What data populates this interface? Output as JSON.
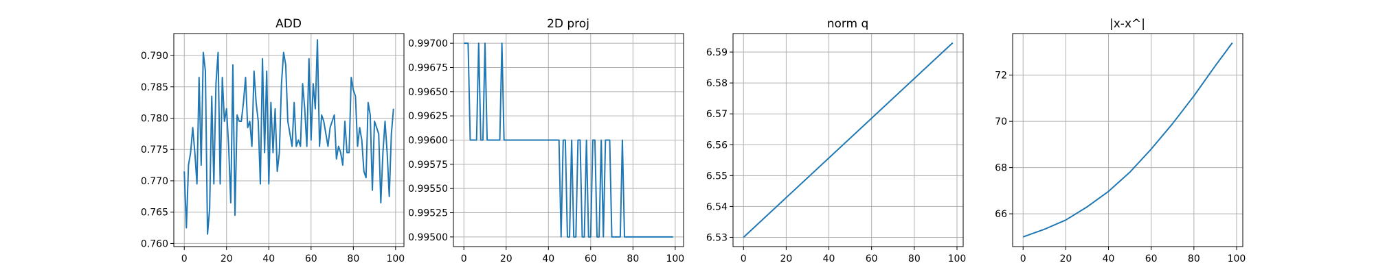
{
  "figure": {
    "background": "#ffffff"
  },
  "chart_data": [
    {
      "type": "line",
      "title": "ADD",
      "xlabel": "",
      "ylabel": "",
      "grid": true,
      "line_color": "#1f77b4",
      "xlim": [
        -4.95,
        103.95
      ],
      "ylim": [
        0.7595,
        0.7935
      ],
      "xticks": [
        0,
        20,
        40,
        60,
        80,
        100
      ],
      "xtick_labels": [
        "0",
        "20",
        "40",
        "60",
        "80",
        "100"
      ],
      "yticks": [
        0.76,
        0.765,
        0.77,
        0.775,
        0.78,
        0.785,
        0.79
      ],
      "ytick_labels": [
        "0.760",
        "0.765",
        "0.770",
        "0.775",
        "0.780",
        "0.785",
        "0.790"
      ],
      "series": [
        {
          "x": [
            0,
            1,
            2,
            3,
            4,
            5,
            6,
            7,
            8,
            9,
            10,
            11,
            12,
            13,
            14,
            15,
            16,
            17,
            18,
            19,
            20,
            21,
            22,
            23,
            24,
            25,
            26,
            27,
            28,
            29,
            30,
            31,
            32,
            33,
            34,
            35,
            36,
            37,
            38,
            39,
            40,
            41,
            42,
            43,
            44,
            45,
            46,
            47,
            48,
            49,
            50,
            51,
            52,
            53,
            54,
            55,
            56,
            57,
            58,
            59,
            60,
            61,
            62,
            63,
            64,
            65,
            66,
            67,
            68,
            69,
            70,
            71,
            72,
            73,
            74,
            75,
            76,
            77,
            78,
            79,
            80,
            81,
            82,
            83,
            84,
            85,
            86,
            87,
            88,
            89,
            90,
            91,
            92,
            93,
            94,
            95,
            96,
            97,
            98,
            99
          ],
          "y": [
            0.7715,
            0.7625,
            0.7725,
            0.7745,
            0.7785,
            0.7745,
            0.7695,
            0.7865,
            0.7725,
            0.7905,
            0.7875,
            0.7615,
            0.7655,
            0.7835,
            0.7695,
            0.7855,
            0.7905,
            0.7695,
            0.7865,
            0.7795,
            0.7815,
            0.7755,
            0.7665,
            0.7885,
            0.7645,
            0.7805,
            0.7795,
            0.7795,
            0.7825,
            0.7865,
            0.7785,
            0.7795,
            0.7755,
            0.7875,
            0.7825,
            0.7795,
            0.7695,
            0.7895,
            0.7745,
            0.7875,
            0.7695,
            0.7825,
            0.7745,
            0.7815,
            0.7715,
            0.7745,
            0.7855,
            0.7905,
            0.7885,
            0.7795,
            0.7775,
            0.7755,
            0.7825,
            0.7755,
            0.7765,
            0.7755,
            0.7855,
            0.7815,
            0.7755,
            0.7895,
            0.7765,
            0.7855,
            0.7815,
            0.7925,
            0.7755,
            0.7805,
            0.7795,
            0.7775,
            0.7755,
            0.7785,
            0.7795,
            0.7805,
            0.7735,
            0.7755,
            0.7745,
            0.7725,
            0.7795,
            0.7745,
            0.7745,
            0.7865,
            0.7845,
            0.7835,
            0.7755,
            0.7785,
            0.7765,
            0.7715,
            0.7705,
            0.7825,
            0.7805,
            0.7685,
            0.7795,
            0.7785,
            0.7775,
            0.7665,
            0.7745,
            0.7795,
            0.7745,
            0.7675,
            0.7775,
            0.7815
          ]
        }
      ]
    },
    {
      "type": "line",
      "title": "2D proj",
      "xlabel": "",
      "ylabel": "",
      "grid": true,
      "line_color": "#1f77b4",
      "xlim": [
        -4.95,
        103.95
      ],
      "ylim": [
        0.9949,
        0.9971
      ],
      "xticks": [
        0,
        20,
        40,
        60,
        80,
        100
      ],
      "xtick_labels": [
        "0",
        "20",
        "40",
        "60",
        "80",
        "100"
      ],
      "yticks": [
        0.995,
        0.99525,
        0.9955,
        0.99575,
        0.996,
        0.99625,
        0.9965,
        0.99675,
        0.997
      ],
      "ytick_labels": [
        "0.99500",
        "0.99525",
        "0.99550",
        "0.99575",
        "0.99600",
        "0.99625",
        "0.99650",
        "0.99675",
        "0.99700"
      ],
      "series": [
        {
          "x": [
            0,
            1,
            2,
            3,
            4,
            5,
            6,
            7,
            8,
            9,
            10,
            11,
            12,
            13,
            14,
            15,
            16,
            17,
            18,
            19,
            20,
            21,
            22,
            23,
            24,
            25,
            26,
            27,
            28,
            29,
            30,
            31,
            32,
            33,
            34,
            35,
            36,
            37,
            38,
            39,
            40,
            41,
            42,
            43,
            44,
            45,
            46,
            47,
            48,
            49,
            50,
            51,
            52,
            53,
            54,
            55,
            56,
            57,
            58,
            59,
            60,
            61,
            62,
            63,
            64,
            65,
            66,
            67,
            68,
            69,
            70,
            71,
            72,
            73,
            74,
            75,
            76,
            77,
            78,
            79,
            80,
            81,
            82,
            83,
            84,
            85,
            86,
            87,
            88,
            89,
            90,
            91,
            92,
            93,
            94,
            95,
            96,
            97,
            98,
            99
          ],
          "y": [
            0.997,
            0.997,
            0.997,
            0.996,
            0.996,
            0.996,
            0.996,
            0.997,
            0.996,
            0.996,
            0.997,
            0.996,
            0.996,
            0.996,
            0.996,
            0.996,
            0.996,
            0.996,
            0.997,
            0.996,
            0.996,
            0.996,
            0.996,
            0.996,
            0.996,
            0.996,
            0.996,
            0.996,
            0.996,
            0.996,
            0.996,
            0.996,
            0.996,
            0.996,
            0.996,
            0.996,
            0.996,
            0.996,
            0.996,
            0.996,
            0.996,
            0.996,
            0.996,
            0.996,
            0.996,
            0.996,
            0.995,
            0.996,
            0.996,
            0.995,
            0.995,
            0.996,
            0.995,
            0.995,
            0.996,
            0.996,
            0.995,
            0.995,
            0.996,
            0.995,
            0.995,
            0.996,
            0.996,
            0.995,
            0.995,
            0.996,
            0.995,
            0.996,
            0.996,
            0.996,
            0.995,
            0.995,
            0.995,
            0.995,
            0.995,
            0.996,
            0.995,
            0.995,
            0.995,
            0.995,
            0.995,
            0.995,
            0.995,
            0.995,
            0.995,
            0.995,
            0.995,
            0.995,
            0.995,
            0.995,
            0.995,
            0.995,
            0.995,
            0.995,
            0.995,
            0.995,
            0.995,
            0.995,
            0.995,
            0.995
          ]
        }
      ]
    },
    {
      "type": "line",
      "title": "norm q",
      "xlabel": "",
      "ylabel": "",
      "grid": true,
      "line_color": "#1f77b4",
      "xlim": [
        -4.9,
        102.9
      ],
      "ylim": [
        6.527,
        6.596
      ],
      "xticks": [
        0,
        20,
        40,
        60,
        80,
        100
      ],
      "xtick_labels": [
        "0",
        "20",
        "40",
        "60",
        "80",
        "100"
      ],
      "yticks": [
        6.53,
        6.54,
        6.55,
        6.56,
        6.57,
        6.58,
        6.59
      ],
      "ytick_labels": [
        "6.53",
        "6.54",
        "6.55",
        "6.56",
        "6.57",
        "6.58",
        "6.59"
      ],
      "series": [
        {
          "x": [
            0,
            98
          ],
          "y": [
            6.53,
            6.593
          ]
        }
      ]
    },
    {
      "type": "line",
      "title": "|x-x^|",
      "xlabel": "",
      "ylabel": "",
      "grid": true,
      "line_color": "#1f77b4",
      "xlim": [
        -4.9,
        102.9
      ],
      "ylim": [
        64.58,
        73.8
      ],
      "xticks": [
        0,
        20,
        40,
        60,
        80,
        100
      ],
      "xtick_labels": [
        "0",
        "20",
        "40",
        "60",
        "80",
        "100"
      ],
      "yticks": [
        66,
        68,
        70,
        72
      ],
      "ytick_labels": [
        "66",
        "68",
        "70",
        "72"
      ],
      "series": [
        {
          "x": [
            0,
            10,
            20,
            30,
            40,
            50,
            60,
            70,
            80,
            90,
            98
          ],
          "y": [
            65.0,
            65.33,
            65.73,
            66.3,
            66.97,
            67.8,
            68.8,
            69.9,
            71.1,
            72.4,
            73.4
          ]
        }
      ]
    }
  ]
}
